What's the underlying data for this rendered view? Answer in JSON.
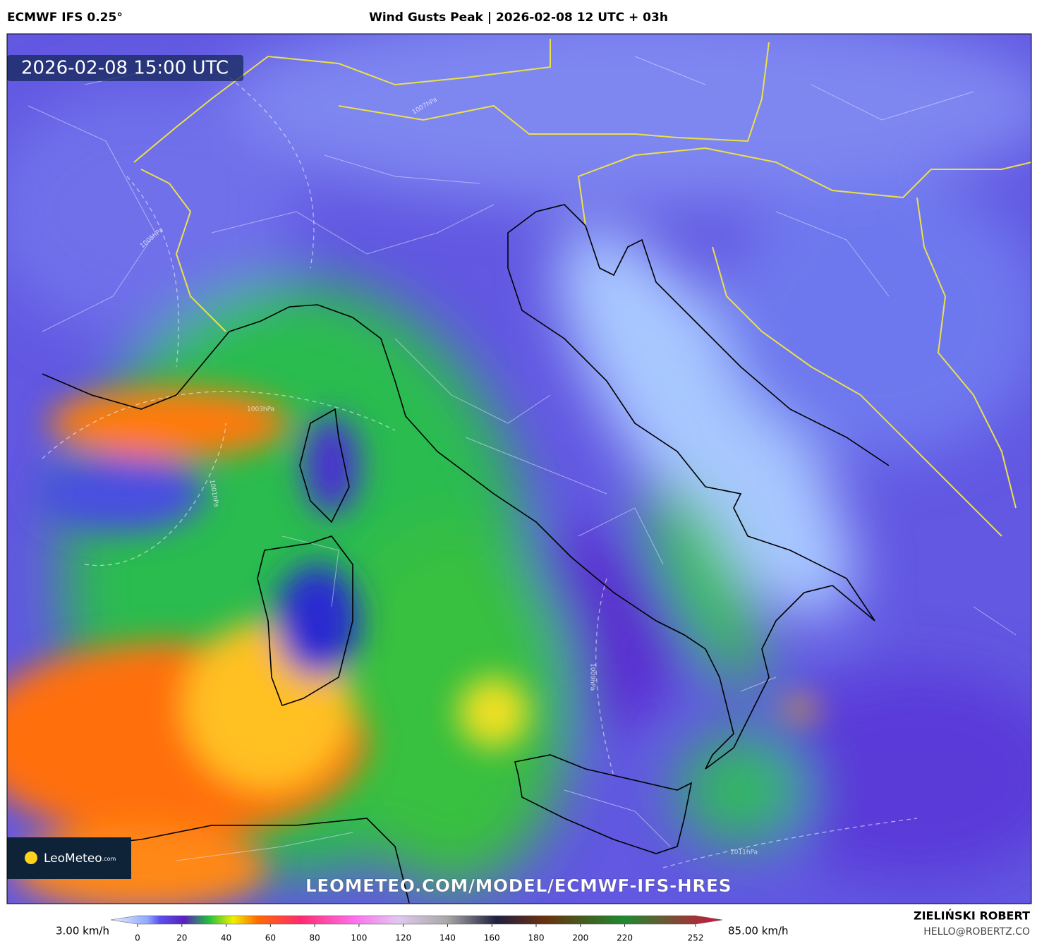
{
  "header": {
    "model": "ECMWF IFS 0.25°",
    "title": "Wind Gusts Peak | 2026-02-08 12 UTC + 03h"
  },
  "map": {
    "valid_time": "2026-02-08 15:00 UTC",
    "watermark": "LEOMETEO.COM/MODEL/ECMWF-IFS-HRES",
    "brand": {
      "name": "LeoMeteo",
      "suffix": ".com"
    },
    "isobars": [
      "1007hPa",
      "1005hPa",
      "1003hPa",
      "1001hPa",
      "1009hPa",
      "1011hPa"
    ]
  },
  "colorbar": {
    "min_label": "3.00 km/h",
    "max_label": "85.00 km/h",
    "ticks": [
      0,
      20,
      40,
      60,
      80,
      100,
      120,
      140,
      160,
      180,
      200,
      220,
      252
    ]
  },
  "footer": {
    "author": "ZIELIŃSKI ROBERT",
    "email": "HELLO@ROBERTZ.CO"
  }
}
